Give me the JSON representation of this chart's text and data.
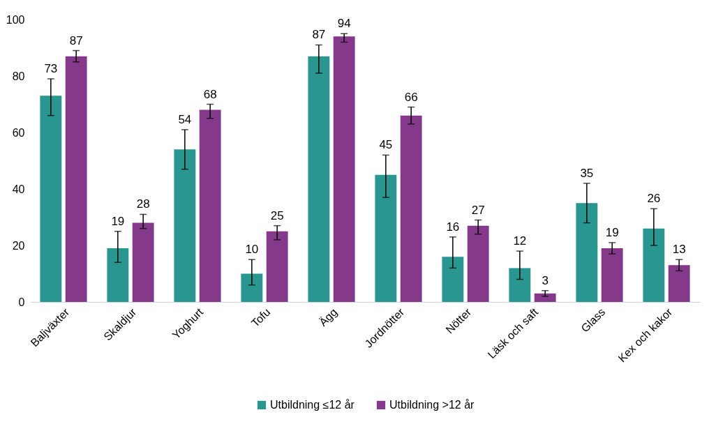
{
  "chart_data": {
    "type": "bar",
    "categories": [
      "Baljväxter",
      "Skaldjur",
      "Yoghurt",
      "Tofu",
      "Ägg",
      "Jordnötter",
      "Nötter",
      "Läsk och saft",
      "Glass",
      "Kex och kakor"
    ],
    "series": [
      {
        "name": "Utbildning ≤12 år",
        "color": "#2a9690",
        "values": [
          73,
          19,
          54,
          10,
          87,
          45,
          16,
          12,
          35,
          26
        ],
        "errors": [
          [
            66,
            79
          ],
          [
            14,
            25
          ],
          [
            47,
            61
          ],
          [
            6,
            15
          ],
          [
            81,
            91
          ],
          [
            37,
            52
          ],
          [
            12,
            23
          ],
          [
            8,
            18
          ],
          [
            28,
            42
          ],
          [
            20,
            33
          ]
        ]
      },
      {
        "name": "Utbildning >12 år",
        "color": "#84398a",
        "values": [
          87,
          28,
          68,
          25,
          94,
          66,
          27,
          3,
          19,
          13
        ],
        "errors": [
          [
            85,
            89
          ],
          [
            26,
            31
          ],
          [
            65,
            70
          ],
          [
            22,
            27
          ],
          [
            92,
            95
          ],
          [
            63,
            69
          ],
          [
            24,
            29
          ],
          [
            2,
            4
          ],
          [
            17,
            21
          ],
          [
            11,
            15
          ]
        ]
      }
    ],
    "ylim": [
      0,
      100
    ],
    "yticks": [
      0,
      20,
      40,
      60,
      80,
      100
    ],
    "grid": false,
    "legend": "bottom",
    "data_labels": true
  }
}
